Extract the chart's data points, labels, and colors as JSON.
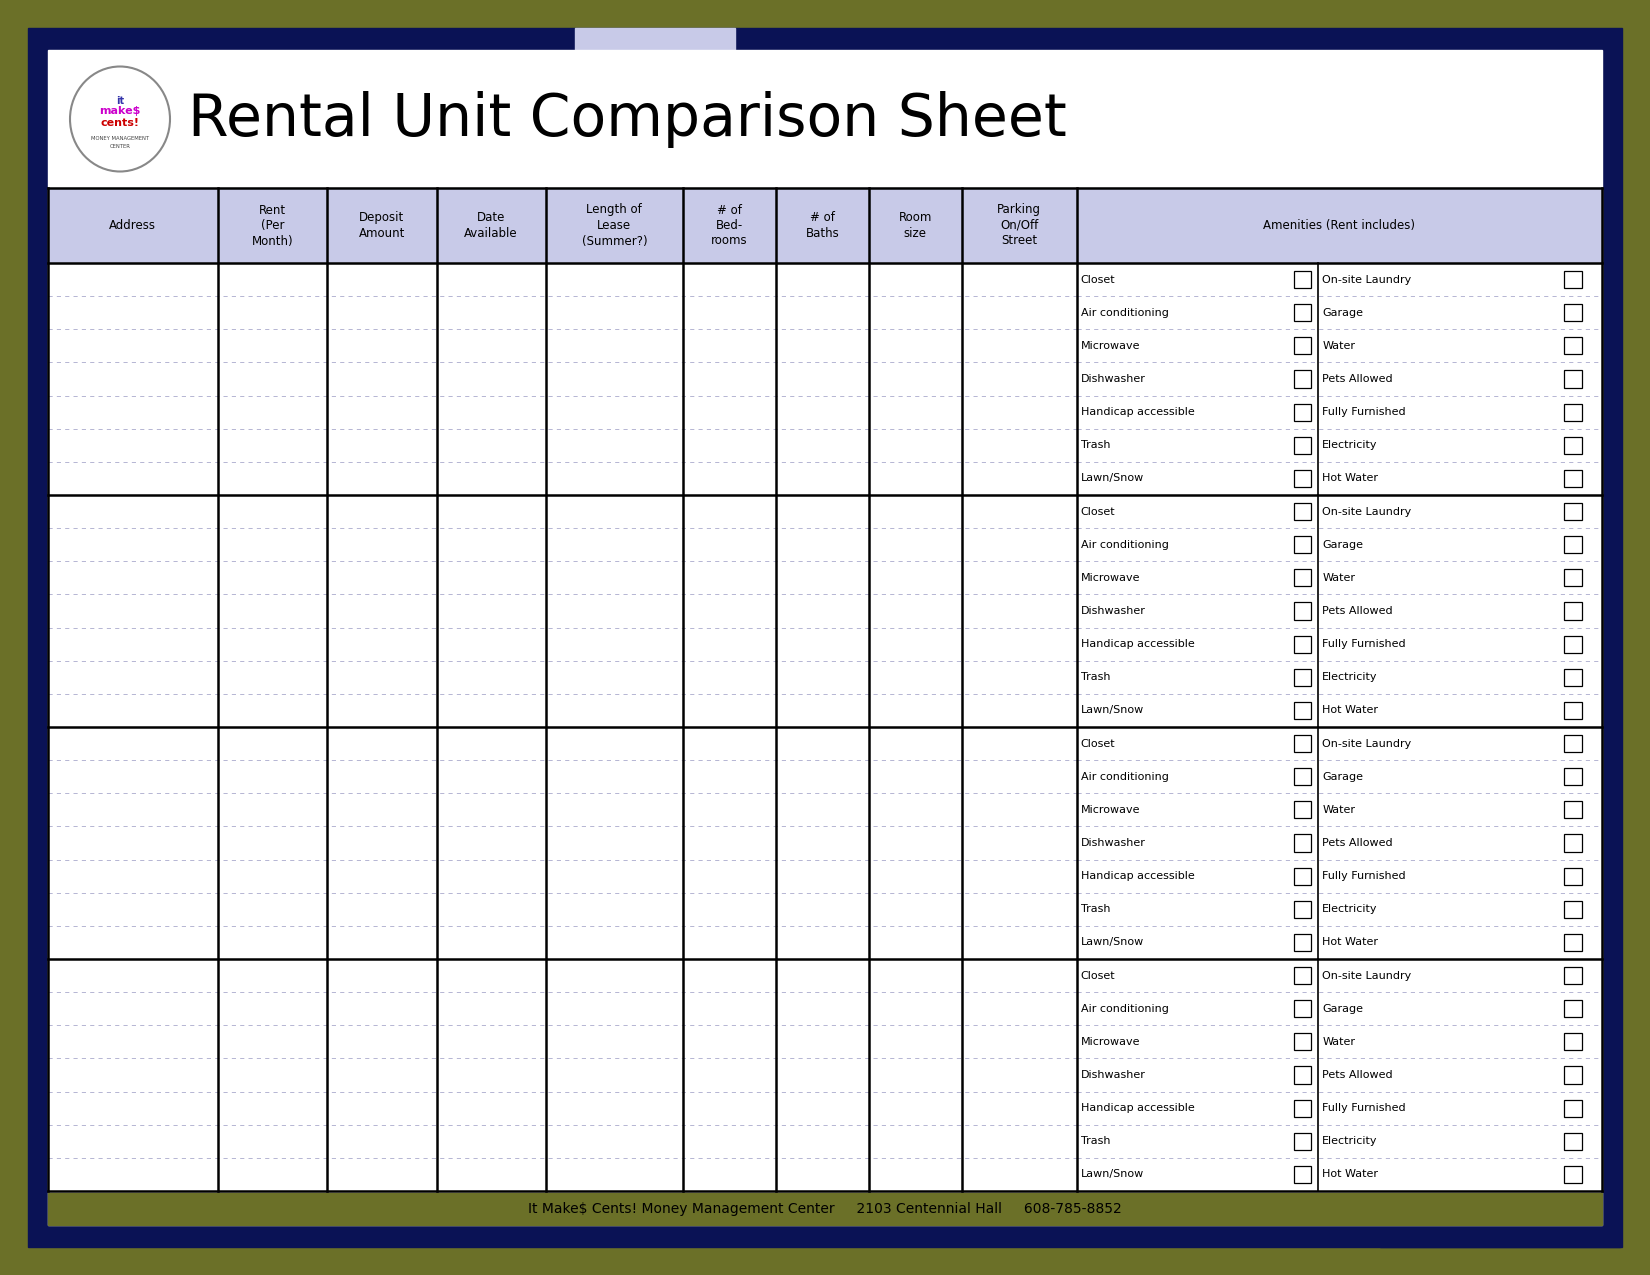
{
  "title": "Rental Unit Comparison Sheet",
  "bg_outer": "#6b7028",
  "bg_navy": "#0a1255",
  "bg_light_purple": "#c8cae8",
  "header_bg": "#c8cae8",
  "white": "#ffffff",
  "black": "#000000",
  "footer_text": "It Make$ Cents! Money Management Center     2103 Centennial Hall     608-785-8852",
  "col_headers": [
    "Address",
    "Rent\n(Per\nMonth)",
    "Deposit\nAmount",
    "Date\nAvailable",
    "Length of\nLease\n(Summer?)",
    "# of\nBed-\nrooms",
    "# of\nBaths",
    "Room\nsize",
    "Parking\nOn/Off\nStreet",
    "Amenities (Rent includes)"
  ],
  "amenities_left": [
    "Closet",
    "Air conditioning",
    "Microwave",
    "Dishwasher",
    "Handicap accessible",
    "Trash",
    "Lawn/Snow"
  ],
  "amenities_right": [
    "On-site Laundry",
    "Garage",
    "Water",
    "Pets Allowed",
    "Fully Furnished",
    "Electricity",
    "Hot Water"
  ],
  "num_data_rows": 4,
  "amenity_rows_per_data": 7,
  "col_widths_rel": [
    1.55,
    1.0,
    1.0,
    1.0,
    1.25,
    0.85,
    0.85,
    0.85,
    1.05,
    4.8
  ]
}
